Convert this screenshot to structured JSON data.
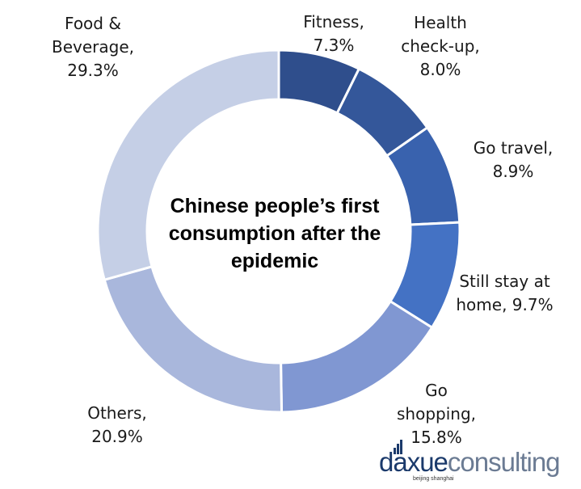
{
  "chart_data": {
    "type": "pie",
    "title": "Chinese people’s first consumption after the epidemic",
    "slices": [
      {
        "label": "Fitness, 7.3%",
        "value": 7.3,
        "color": "#2f4e8c"
      },
      {
        "label": "Health\ncheck-up,\n8.0%",
        "value": 8.0,
        "color": "#34579a"
      },
      {
        "label": "Go travel,\n8.9%",
        "value": 8.9,
        "color": "#3962ae"
      },
      {
        "label": "Still stay at\nhome, 9.7%",
        "value": 9.7,
        "color": "#4472c4"
      },
      {
        "label": "Go\nshopping,\n15.8%",
        "value": 15.8,
        "color": "#8097d2"
      },
      {
        "label": "Others,\n20.9%",
        "value": 20.9,
        "color": "#a9b7dc"
      },
      {
        "label": "Food &\nBeverage,\n29.3%",
        "value": 29.3,
        "color": "#c5cfe6"
      }
    ]
  },
  "branding": {
    "logo_a": "daxue",
    "logo_b": "consulting",
    "tagline": "beijing shanghai"
  }
}
